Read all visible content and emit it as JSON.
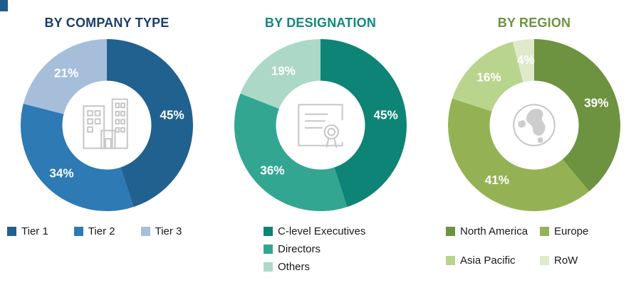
{
  "corner_accent": {
    "color": "#1f5c8c"
  },
  "chart_data": [
    {
      "type": "donut",
      "title": "BY COMPANY TYPE",
      "title_color": "#1c3e6d",
      "center_icon": "buildings-icon",
      "legend_position": "bottom-row",
      "values_unit": "%",
      "segments": [
        {
          "label": "Tier 1",
          "value": 45,
          "unit": "%",
          "color": "#21618f"
        },
        {
          "label": "Tier 2",
          "value": 34,
          "unit": "%",
          "color": "#2d7ab4"
        },
        {
          "label": "Tier 3",
          "value": 21,
          "unit": "%",
          "color": "#a7bedb"
        }
      ]
    },
    {
      "type": "donut",
      "title": "BY DESIGNATION",
      "title_color": "#12897b",
      "center_icon": "certificate-icon",
      "legend_position": "bottom-list",
      "values_unit": "%",
      "segments": [
        {
          "label": "C-level Executives",
          "value": 45,
          "unit": "%",
          "color": "#0d8476"
        },
        {
          "label": "Directors",
          "value": 36,
          "unit": "%",
          "color": "#33a692"
        },
        {
          "label": "Others",
          "value": 19,
          "unit": "%",
          "color": "#abd8c7"
        }
      ]
    },
    {
      "type": "donut",
      "title": "BY REGION",
      "title_color": "#6f9240",
      "center_icon": "globe-icon",
      "legend_position": "bottom-grid",
      "values_unit": "%",
      "segments": [
        {
          "label": "North America",
          "value": 39,
          "unit": "%",
          "color": "#6d9340"
        },
        {
          "label": "Europe",
          "value": 41,
          "unit": "%",
          "color": "#94b254"
        },
        {
          "label": "Asia Pacific",
          "value": 16,
          "unit": "%",
          "color": "#b9d48c"
        },
        {
          "label": "RoW",
          "value": 4,
          "unit": "%",
          "color": "#dfeacb"
        }
      ]
    }
  ]
}
